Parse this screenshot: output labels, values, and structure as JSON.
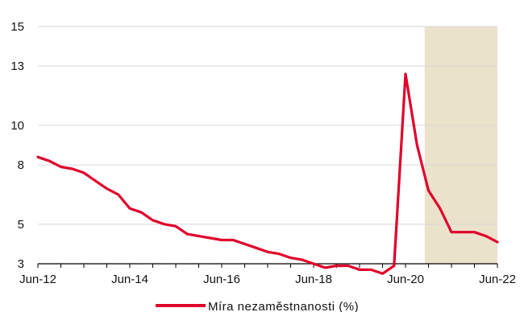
{
  "chart_data": {
    "type": "line",
    "title": "",
    "xlabel": "",
    "ylabel": "",
    "ylim": [
      3,
      15
    ],
    "xlim": [
      "2012-06",
      "2022-06"
    ],
    "yticks": [
      3,
      5,
      8,
      10,
      13,
      15
    ],
    "xticks": [
      "Jun-12",
      "Jun-14",
      "Jun-16",
      "Jun-18",
      "Jun-20",
      "Jun-22"
    ],
    "grid": "horizontal",
    "legend_position": "bottom",
    "shaded_region": {
      "from": "2020-11",
      "to": "2022-06",
      "color": "#ebe2cc"
    },
    "colors": {
      "line": "#e0002b",
      "grid": "#d9d9d9",
      "axis": "#000000"
    },
    "series": [
      {
        "name": "Míra nezaměstnanosti (%)",
        "x": [
          "2012-06",
          "2012-09",
          "2012-12",
          "2013-03",
          "2013-06",
          "2013-09",
          "2013-12",
          "2014-03",
          "2014-06",
          "2014-09",
          "2014-12",
          "2015-03",
          "2015-06",
          "2015-09",
          "2015-12",
          "2016-03",
          "2016-06",
          "2016-09",
          "2016-12",
          "2017-03",
          "2017-06",
          "2017-09",
          "2017-12",
          "2018-03",
          "2018-06",
          "2018-09",
          "2018-12",
          "2019-03",
          "2019-06",
          "2019-09",
          "2019-12",
          "2020-03",
          "2020-06",
          "2020-09",
          "2020-12",
          "2021-03",
          "2021-06",
          "2021-09",
          "2021-12",
          "2022-03",
          "2022-06"
        ],
        "values": [
          8.4,
          8.2,
          7.9,
          7.8,
          7.6,
          7.2,
          6.8,
          6.5,
          5.8,
          5.6,
          5.2,
          5.0,
          4.9,
          4.5,
          4.4,
          4.3,
          4.2,
          4.2,
          4.0,
          3.8,
          3.6,
          3.5,
          3.3,
          3.2,
          3.0,
          2.8,
          2.9,
          2.9,
          2.7,
          2.7,
          2.5,
          2.9,
          12.6,
          9.0,
          6.7,
          5.8,
          4.6,
          4.6,
          4.6,
          4.4,
          4.1
        ]
      }
    ]
  }
}
